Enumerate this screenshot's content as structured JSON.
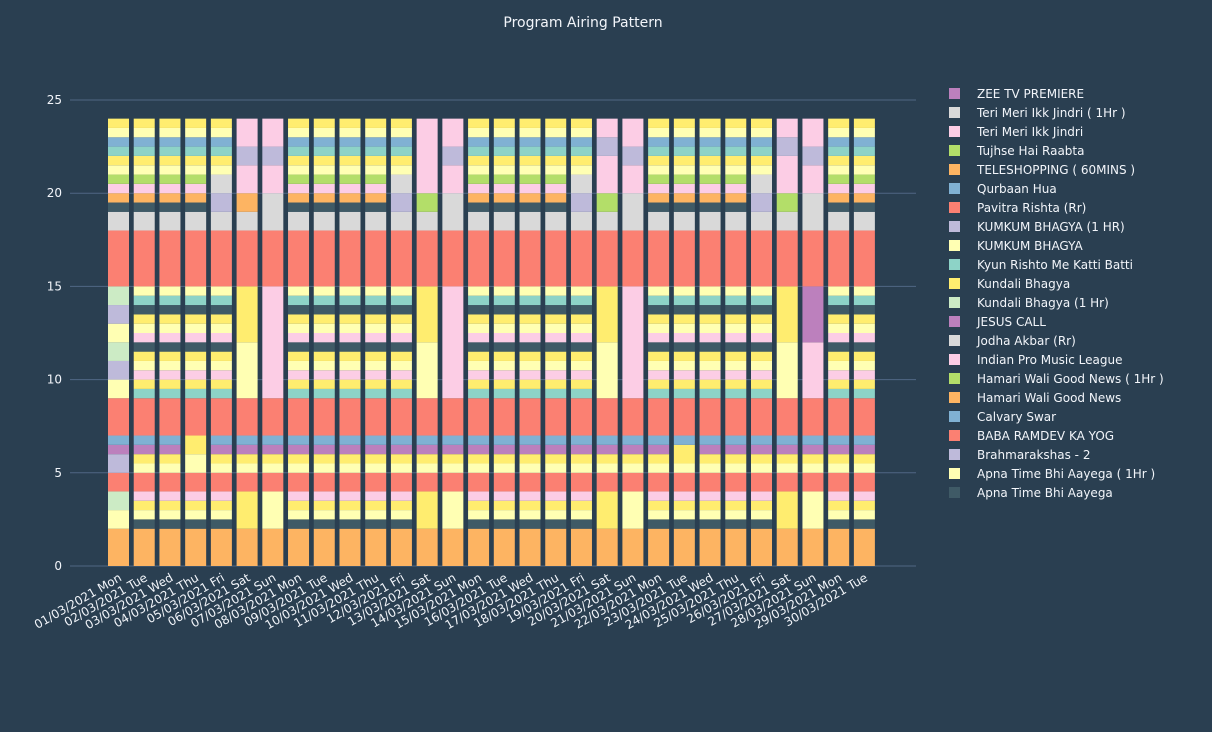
{
  "chart_data": {
    "type": "bar",
    "stacked": true,
    "title": "Program Airing Pattern",
    "xlabel": "",
    "ylabel": "",
    "ylim": [
      0,
      25
    ],
    "yticks": [
      0,
      5,
      10,
      15,
      20,
      25
    ],
    "grid": true,
    "legend_position": "right",
    "categories": [
      "01/03/2021 Mon",
      "02/03/2021 Tue",
      "03/03/2021 Wed",
      "04/03/2021 Thu",
      "05/03/2021 Fri",
      "06/03/2021 Sat",
      "07/03/2021 Sun",
      "08/03/2021 Mon",
      "09/03/2021 Tue",
      "10/03/2021 Wed",
      "11/03/2021 Thu",
      "12/03/2021 Fri",
      "13/03/2021 Sat",
      "14/03/2021 Sun",
      "15/03/2021 Mon",
      "16/03/2021 Tue",
      "17/03/2021 Wed",
      "18/03/2021 Thu",
      "19/03/2021 Fri",
      "20/03/2021 Sat",
      "21/03/2021 Sun",
      "22/03/2021 Mon",
      "23/03/2021 Tue",
      "24/03/2021 Wed",
      "25/03/2021 Thu",
      "26/03/2021 Fri",
      "27/03/2021 Sat",
      "28/03/2021 Sun",
      "29/03/2021 Mon",
      "30/03/2021 Tue"
    ],
    "legend": [
      {
        "name": "ZEE TV PREMIERE",
        "color": "#bc80bd"
      },
      {
        "name": "Teri Meri Ikk Jindri ( 1Hr )",
        "color": "#d9d9d9"
      },
      {
        "name": "Teri Meri Ikk Jindri",
        "color": "#fccde5"
      },
      {
        "name": "Tujhse Hai Raabta",
        "color": "#b3de69"
      },
      {
        "name": "TELESHOPPING ( 60MINS )",
        "color": "#fdb462"
      },
      {
        "name": "Qurbaan Hua",
        "color": "#80b1d3"
      },
      {
        "name": "Pavitra Rishta (Rr)",
        "color": "#fb8072"
      },
      {
        "name": "KUMKUM BHAGYA (1 HR)",
        "color": "#bebada"
      },
      {
        "name": "KUMKUM BHAGYA",
        "color": "#ffffb3"
      },
      {
        "name": "Kyun Rishto Me Katti Batti",
        "color": "#8dd3c7"
      },
      {
        "name": "Kundali Bhagya",
        "color": "#ffed6f"
      },
      {
        "name": "Kundali Bhagya (1 Hr)",
        "color": "#ccebc5"
      },
      {
        "name": "JESUS CALL",
        "color": "#bc80bd"
      },
      {
        "name": "Jodha Akbar (Rr)",
        "color": "#d9d9d9"
      },
      {
        "name": "Indian Pro Music League",
        "color": "#fccde5"
      },
      {
        "name": "Hamari Wali Good News ( 1Hr )",
        "color": "#b3de69"
      },
      {
        "name": "Hamari Wali Good News",
        "color": "#fdb462"
      },
      {
        "name": "Calvary Swar",
        "color": "#80b1d3"
      },
      {
        "name": "BABA RAMDEV KA YOG",
        "color": "#fb8072"
      },
      {
        "name": "Brahmarakshas - 2",
        "color": "#bebada"
      },
      {
        "name": "Apna Time Bhi Aayega ( 1Hr )",
        "color": "#ffffb3"
      },
      {
        "name": "Apna Time Bhi Aayega",
        "color": "#3f5a66"
      }
    ],
    "patterns": {
      "weekday": [
        [
          "Hamari Wali Good News",
          2
        ],
        [
          "Apna Time Bhi Aayega",
          0.5
        ],
        [
          "KUMKUM BHAGYA",
          0.5
        ],
        [
          "Kundali Bhagya",
          0.5
        ],
        [
          "Teri Meri Ikk Jindri",
          0.5
        ],
        [
          "BABA RAMDEV KA YOG",
          1
        ],
        [
          "KUMKUM BHAGYA",
          0.5
        ],
        [
          "Kundali Bhagya",
          0.5
        ],
        [
          "JESUS CALL",
          0.5
        ],
        [
          "Calvary Swar",
          0.5
        ],
        [
          "Pavitra Rishta (Rr)",
          2
        ],
        [
          "Kyun Rishto Me Katti Batti",
          0.5
        ],
        [
          "Kundali Bhagya",
          0.5
        ],
        [
          "Teri Meri Ikk Jindri",
          0.5
        ],
        [
          "KUMKUM BHAGYA",
          0.5
        ],
        [
          "Kundali Bhagya",
          0.5
        ],
        [
          "Apna Time Bhi Aayega",
          0.5
        ],
        [
          "Teri Meri Ikk Jindri",
          0.5
        ],
        [
          "KUMKUM BHAGYA",
          0.5
        ],
        [
          "Kundali Bhagya",
          0.5
        ],
        [
          "Apna Time Bhi Aayega",
          0.5
        ],
        [
          "Kyun Rishto Me Katti Batti",
          0.5
        ],
        [
          "KUMKUM BHAGYA",
          0.5
        ],
        [
          "Pavitra Rishta (Rr)",
          3
        ],
        [
          "Jodha Akbar (Rr)",
          1
        ],
        [
          "Apna Time Bhi Aayega",
          0.5
        ],
        [
          "TELESHOPPING ( 60MINS )",
          0.5
        ],
        [
          "Teri Meri Ikk Jindri",
          0.5
        ],
        [
          "Tujhse Hai Raabta",
          0.5
        ],
        [
          "KUMKUM BHAGYA",
          0.5
        ],
        [
          "Kundali Bhagya",
          0.5
        ],
        [
          "Kyun Rishto Me Katti Batti",
          0.5
        ],
        [
          "Qurbaan Hua",
          0.5
        ],
        [
          "KUMKUM BHAGYA",
          0.5
        ],
        [
          "Kundali Bhagya",
          0.5
        ]
      ],
      "monday_first": [
        [
          "Hamari Wali Good News",
          2
        ],
        [
          "Apna Time Bhi Aayega ( 1Hr )",
          1
        ],
        [
          "Kundali Bhagya (1 Hr)",
          1
        ],
        [
          "BABA RAMDEV KA YOG",
          1
        ],
        [
          "Brahmarakshas - 2",
          1
        ],
        [
          "JESUS CALL",
          0.5
        ],
        [
          "Calvary Swar",
          0.5
        ],
        [
          "Pavitra Rishta (Rr)",
          2
        ],
        [
          "Apna Time Bhi Aayega ( 1Hr )",
          1
        ],
        [
          "Brahmarakshas - 2",
          1
        ],
        [
          "Kundali Bhagya (1 Hr)",
          1
        ],
        [
          "Apna Time Bhi Aayega ( 1Hr )",
          1
        ],
        [
          "Brahmarakshas - 2",
          1
        ],
        [
          "Kundali Bhagya (1 Hr)",
          1
        ],
        [
          "Pavitra Rishta (Rr)",
          3
        ],
        [
          "Jodha Akbar (Rr)",
          1
        ],
        [
          "Apna Time Bhi Aayega",
          0.5
        ],
        [
          "TELESHOPPING ( 60MINS )",
          0.5
        ],
        [
          "Teri Meri Ikk Jindri",
          0.5
        ],
        [
          "Tujhse Hai Raabta",
          0.5
        ],
        [
          "KUMKUM BHAGYA",
          0.5
        ],
        [
          "Kundali Bhagya",
          0.5
        ],
        [
          "Kyun Rishto Me Katti Batti",
          0.5
        ],
        [
          "Qurbaan Hua",
          0.5
        ],
        [
          "KUMKUM BHAGYA",
          0.5
        ],
        [
          "Kundali Bhagya",
          0.5
        ]
      ],
      "thursday_0403": [
        [
          "Hamari Wali Good News",
          2
        ],
        [
          "Apna Time Bhi Aayega",
          0.5
        ],
        [
          "KUMKUM BHAGYA",
          0.5
        ],
        [
          "Kundali Bhagya",
          0.5
        ],
        [
          "Teri Meri Ikk Jindri",
          0.5
        ],
        [
          "BABA RAMDEV KA YOG",
          1
        ],
        [
          "KUMKUM BHAGYA",
          1
        ],
        [
          "Kundali Bhagya",
          1
        ],
        [
          "Pavitra Rishta (Rr)",
          2
        ],
        [
          "Kyun Rishto Me Katti Batti",
          0.5
        ],
        [
          "Kundali Bhagya",
          0.5
        ],
        [
          "Teri Meri Ikk Jindri",
          0.5
        ],
        [
          "KUMKUM BHAGYA",
          0.5
        ],
        [
          "Kundali Bhagya",
          0.5
        ],
        [
          "Apna Time Bhi Aayega",
          0.5
        ],
        [
          "Teri Meri Ikk Jindri",
          0.5
        ],
        [
          "KUMKUM BHAGYA",
          0.5
        ],
        [
          "Kundali Bhagya",
          0.5
        ],
        [
          "Apna Time Bhi Aayega",
          0.5
        ],
        [
          "Kyun Rishto Me Katti Batti",
          0.5
        ],
        [
          "KUMKUM BHAGYA",
          0.5
        ],
        [
          "Pavitra Rishta (Rr)",
          3
        ],
        [
          "Jodha Akbar (Rr)",
          1
        ],
        [
          "Apna Time Bhi Aayega",
          0.5
        ],
        [
          "TELESHOPPING ( 60MINS )",
          0.5
        ],
        [
          "Teri Meri Ikk Jindri",
          0.5
        ],
        [
          "Tujhse Hai Raabta",
          0.5
        ],
        [
          "KUMKUM BHAGYA",
          0.5
        ],
        [
          "Kundali Bhagya",
          0.5
        ],
        [
          "Kyun Rishto Me Katti Batti",
          0.5
        ],
        [
          "Qurbaan Hua",
          0.5
        ],
        [
          "KUMKUM BHAGYA",
          0.5
        ],
        [
          "Kundali Bhagya",
          0.5
        ]
      ],
      "tuesday_2303": [
        [
          "Hamari Wali Good News",
          2
        ],
        [
          "Apna Time Bhi Aayega",
          0.5
        ],
        [
          "KUMKUM BHAGYA",
          0.5
        ],
        [
          "Kundali Bhagya",
          0.5
        ],
        [
          "Teri Meri Ikk Jindri",
          0.5
        ],
        [
          "BABA RAMDEV KA YOG",
          1
        ],
        [
          "KUMKUM BHAGYA",
          0.5
        ],
        [
          "Kundali Bhagya",
          1
        ],
        [
          "Calvary Swar",
          0.5
        ],
        [
          "Pavitra Rishta (Rr)",
          2
        ],
        [
          "Kyun Rishto Me Katti Batti",
          0.5
        ],
        [
          "Kundali Bhagya",
          0.5
        ],
        [
          "Teri Meri Ikk Jindri",
          0.5
        ],
        [
          "KUMKUM BHAGYA",
          0.5
        ],
        [
          "Kundali Bhagya",
          0.5
        ],
        [
          "Apna Time Bhi Aayega",
          0.5
        ],
        [
          "Teri Meri Ikk Jindri",
          0.5
        ],
        [
          "KUMKUM BHAGYA",
          0.5
        ],
        [
          "Kundali Bhagya",
          0.5
        ],
        [
          "Apna Time Bhi Aayega",
          0.5
        ],
        [
          "Kyun Rishto Me Katti Batti",
          0.5
        ],
        [
          "KUMKUM BHAGYA",
          0.5
        ],
        [
          "Pavitra Rishta (Rr)",
          3
        ],
        [
          "Jodha Akbar (Rr)",
          1
        ],
        [
          "Apna Time Bhi Aayega",
          0.5
        ],
        [
          "TELESHOPPING ( 60MINS )",
          0.5
        ],
        [
          "Teri Meri Ikk Jindri",
          0.5
        ],
        [
          "Tujhse Hai Raabta",
          0.5
        ],
        [
          "KUMKUM BHAGYA",
          0.5
        ],
        [
          "Kundali Bhagya",
          0.5
        ],
        [
          "Kyun Rishto Me Katti Batti",
          0.5
        ],
        [
          "Qurbaan Hua",
          0.5
        ],
        [
          "KUMKUM BHAGYA",
          0.5
        ],
        [
          "Kundali Bhagya",
          0.5
        ]
      ],
      "friday": [
        [
          "Hamari Wali Good News",
          2
        ],
        [
          "Apna Time Bhi Aayega",
          0.5
        ],
        [
          "KUMKUM BHAGYA",
          0.5
        ],
        [
          "Kundali Bhagya",
          0.5
        ],
        [
          "Teri Meri Ikk Jindri",
          0.5
        ],
        [
          "BABA RAMDEV KA YOG",
          1
        ],
        [
          "KUMKUM BHAGYA",
          0.5
        ],
        [
          "Kundali Bhagya",
          0.5
        ],
        [
          "JESUS CALL",
          0.5
        ],
        [
          "Calvary Swar",
          0.5
        ],
        [
          "Pavitra Rishta (Rr)",
          2
        ],
        [
          "Kyun Rishto Me Katti Batti",
          0.5
        ],
        [
          "Kundali Bhagya",
          0.5
        ],
        [
          "Teri Meri Ikk Jindri",
          0.5
        ],
        [
          "KUMKUM BHAGYA",
          0.5
        ],
        [
          "Kundali Bhagya",
          0.5
        ],
        [
          "Apna Time Bhi Aayega",
          0.5
        ],
        [
          "Teri Meri Ikk Jindri",
          0.5
        ],
        [
          "KUMKUM BHAGYA",
          0.5
        ],
        [
          "Kundali Bhagya",
          0.5
        ],
        [
          "Apna Time Bhi Aayega",
          0.5
        ],
        [
          "Kyun Rishto Me Katti Batti",
          0.5
        ],
        [
          "KUMKUM BHAGYA",
          0.5
        ],
        [
          "Pavitra Rishta (Rr)",
          3
        ],
        [
          "Jodha Akbar (Rr)",
          1
        ],
        [
          "KUMKUM BHAGYA (1 HR)",
          1
        ],
        [
          "Teri Meri Ikk Jindri ( 1Hr )",
          1
        ],
        [
          "KUMKUM BHAGYA",
          0.5
        ],
        [
          "Kundali Bhagya",
          0.5
        ],
        [
          "Kyun Rishto Me Katti Batti",
          0.5
        ],
        [
          "Qurbaan Hua",
          0.5
        ],
        [
          "KUMKUM BHAGYA",
          0.5
        ],
        [
          "Kundali Bhagya",
          0.5
        ]
      ],
      "saturday_a": [
        [
          "Hamari Wali Good News",
          2
        ],
        [
          "Kundali Bhagya",
          2
        ],
        [
          "BABA RAMDEV KA YOG",
          1
        ],
        [
          "KUMKUM BHAGYA",
          0.5
        ],
        [
          "Kundali Bhagya",
          0.5
        ],
        [
          "JESUS CALL",
          0.5
        ],
        [
          "Calvary Swar",
          0.5
        ],
        [
          "Pavitra Rishta (Rr)",
          2
        ],
        [
          "KUMKUM BHAGYA",
          3
        ],
        [
          "Kundali Bhagya",
          3
        ],
        [
          "Pavitra Rishta (Rr)",
          3
        ],
        [
          "Jodha Akbar (Rr)",
          1
        ],
        [
          "TELESHOPPING ( 60MINS )",
          1
        ],
        [
          "Indian Pro Music League",
          1.5
        ],
        [
          "KUMKUM BHAGYA (1 HR)",
          1
        ],
        [
          "Indian Pro Music League",
          1.5
        ]
      ],
      "saturday_b": [
        [
          "Hamari Wali Good News",
          2
        ],
        [
          "Kundali Bhagya",
          2
        ],
        [
          "BABA RAMDEV KA YOG",
          1
        ],
        [
          "KUMKUM BHAGYA",
          0.5
        ],
        [
          "Kundali Bhagya",
          0.5
        ],
        [
          "JESUS CALL",
          0.5
        ],
        [
          "Calvary Swar",
          0.5
        ],
        [
          "Pavitra Rishta (Rr)",
          2
        ],
        [
          "KUMKUM BHAGYA",
          3
        ],
        [
          "Kundali Bhagya",
          3
        ],
        [
          "Pavitra Rishta (Rr)",
          3
        ],
        [
          "Jodha Akbar (Rr)",
          1
        ],
        [
          "Hamari Wali Good News ( 1Hr )",
          1
        ],
        [
          "Indian Pro Music League",
          4
        ]
      ],
      "saturday_c": [
        [
          "Hamari Wali Good News",
          2
        ],
        [
          "Kundali Bhagya",
          2
        ],
        [
          "BABA RAMDEV KA YOG",
          1
        ],
        [
          "KUMKUM BHAGYA",
          0.5
        ],
        [
          "Kundali Bhagya",
          0.5
        ],
        [
          "JESUS CALL",
          0.5
        ],
        [
          "Calvary Swar",
          0.5
        ],
        [
          "Pavitra Rishta (Rr)",
          2
        ],
        [
          "KUMKUM BHAGYA",
          3
        ],
        [
          "Kundali Bhagya",
          3
        ],
        [
          "Pavitra Rishta (Rr)",
          3
        ],
        [
          "Jodha Akbar (Rr)",
          1
        ],
        [
          "Hamari Wali Good News ( 1Hr )",
          1
        ],
        [
          "Indian Pro Music League",
          2
        ],
        [
          "KUMKUM BHAGYA (1 HR)",
          1
        ],
        [
          "Indian Pro Music League",
          1
        ]
      ],
      "sunday": [
        [
          "Hamari Wali Good News",
          2
        ],
        [
          "KUMKUM BHAGYA",
          2
        ],
        [
          "BABA RAMDEV KA YOG",
          1
        ],
        [
          "KUMKUM BHAGYA",
          0.5
        ],
        [
          "Kundali Bhagya",
          0.5
        ],
        [
          "JESUS CALL",
          0.5
        ],
        [
          "Calvary Swar",
          0.5
        ],
        [
          "Pavitra Rishta (Rr)",
          2
        ],
        [
          "Indian Pro Music League",
          6
        ],
        [
          "Pavitra Rishta (Rr)",
          3
        ],
        [
          "Jodha Akbar (Rr)",
          2
        ],
        [
          "Indian Pro Music League",
          1.5
        ],
        [
          "KUMKUM BHAGYA (1 HR)",
          1
        ],
        [
          "Indian Pro Music League",
          1.5
        ]
      ],
      "sunday_2803": [
        [
          "Hamari Wali Good News",
          2
        ],
        [
          "KUMKUM BHAGYA",
          2
        ],
        [
          "BABA RAMDEV KA YOG",
          1
        ],
        [
          "KUMKUM BHAGYA",
          0.5
        ],
        [
          "Kundali Bhagya",
          0.5
        ],
        [
          "JESUS CALL",
          0.5
        ],
        [
          "Calvary Swar",
          0.5
        ],
        [
          "Pavitra Rishta (Rr)",
          2
        ],
        [
          "Indian Pro Music League",
          3
        ],
        [
          "ZEE TV PREMIERE",
          3
        ],
        [
          "Pavitra Rishta (Rr)",
          3
        ],
        [
          "Jodha Akbar (Rr)",
          2
        ],
        [
          "Indian Pro Music League",
          1.5
        ],
        [
          "KUMKUM BHAGYA (1 HR)",
          1
        ],
        [
          "Indian Pro Music League",
          1.5
        ]
      ]
    },
    "day_patterns": [
      "monday_first",
      "weekday",
      "weekday",
      "thursday_0403",
      "friday",
      "saturday_a",
      "sunday",
      "weekday",
      "weekday",
      "weekday",
      "weekday",
      "friday",
      "saturday_b",
      "sunday",
      "weekday",
      "weekday",
      "weekday",
      "weekday",
      "friday",
      "saturday_c",
      "sunday",
      "weekday",
      "tuesday_2303",
      "weekday",
      "weekday",
      "friday",
      "saturday_c",
      "sunday_2803",
      "weekday",
      "weekday"
    ]
  }
}
